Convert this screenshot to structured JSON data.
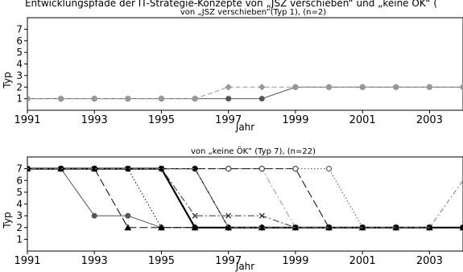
{
  "header_fragment": "Entwicklungspfade der IT-Strategie-Konzepte von „JSZ verschieben“ und „keine ÖK“ (",
  "chart_data": [
    {
      "type": "line",
      "title": "von „JSZ verschieben”(Typ 1), (n=2)",
      "xlabel": "Jahr",
      "ylabel": "Typ",
      "xlim": [
        1991,
        2004
      ],
      "ylim": [
        0,
        8
      ],
      "xticks": [
        1991,
        1993,
        1995,
        1997,
        1999,
        2001,
        2003
      ],
      "yticks": [
        1,
        2,
        3,
        4,
        5,
        6,
        7
      ],
      "series": [
        {
          "color": "#555555",
          "dash": "solid",
          "marker": "circle",
          "x": [
            1991,
            1992,
            1993,
            1994,
            1995,
            1996,
            1997,
            1998,
            1999,
            2000,
            2001,
            2002,
            2003,
            2004
          ],
          "y": [
            1,
            1,
            1,
            1,
            1,
            1,
            1,
            1,
            2,
            2,
            2,
            2,
            2,
            2
          ]
        },
        {
          "color": "#999999",
          "dash": "dashed",
          "marker": "diamond",
          "x": [
            1991,
            1992,
            1993,
            1994,
            1995,
            1996,
            1997,
            1998,
            1999,
            2000,
            2001,
            2002,
            2003,
            2004
          ],
          "y": [
            1,
            1,
            1,
            1,
            1,
            1,
            2,
            2,
            2,
            2,
            2,
            2,
            2,
            2
          ]
        }
      ]
    },
    {
      "type": "line",
      "title": "von „keine ÖK” (Typ 7), (n=22)",
      "xlabel": "Jahr",
      "ylabel": "Typ",
      "xlim": [
        1991,
        2004
      ],
      "ylim": [
        0,
        8
      ],
      "xticks": [
        1991,
        1993,
        1995,
        1997,
        1999,
        2001,
        2003
      ],
      "yticks": [
        1,
        2,
        3,
        4,
        5,
        6,
        7
      ],
      "series": [
        {
          "color": "#555555",
          "dash": "solid",
          "marker": "circle",
          "x": [
            1991,
            1992,
            1993,
            1994,
            1995,
            1996,
            1997,
            1998,
            1999,
            2000,
            2001,
            2002,
            2003,
            2004
          ],
          "y": [
            7,
            7,
            3,
            3,
            2,
            2,
            2,
            2,
            2,
            2,
            2,
            2,
            2,
            2
          ]
        },
        {
          "color": "#000000",
          "dash": "longdash",
          "marker": "triangle",
          "x": [
            1991,
            1992,
            1993,
            1994,
            1995,
            1996,
            1997,
            1998,
            1999,
            2000,
            2001,
            2002,
            2003,
            2004
          ],
          "y": [
            7,
            7,
            7,
            2,
            2,
            2,
            2,
            2,
            2,
            2,
            2,
            2,
            2,
            2
          ]
        },
        {
          "color": "#000000",
          "dash": "dotted",
          "marker": "plus",
          "x": [
            1991,
            1992,
            1993,
            1994,
            1995,
            1996,
            1997,
            1998,
            1999,
            2000,
            2001,
            2002,
            2003,
            2004
          ],
          "y": [
            7,
            7,
            7,
            7,
            2,
            2,
            2,
            2,
            2,
            2,
            2,
            2,
            2,
            2
          ]
        },
        {
          "color": "#000000",
          "dash": "thick",
          "marker": "circle",
          "x": [
            1991,
            1992,
            1993,
            1994,
            1995,
            1996,
            1997,
            1998,
            1999,
            2000,
            2001,
            2002,
            2003,
            2004
          ],
          "y": [
            7,
            7,
            7,
            7,
            7,
            2,
            2,
            2,
            2,
            2,
            2,
            2,
            2,
            2
          ]
        },
        {
          "color": "#333333",
          "dash": "dashdot",
          "marker": "cross",
          "x": [
            1991,
            1992,
            1993,
            1994,
            1995,
            1996,
            1997,
            1998,
            1999,
            2000,
            2001,
            2002,
            2003,
            2004
          ],
          "y": [
            7,
            7,
            7,
            7,
            7,
            3,
            3,
            3,
            2,
            2,
            2,
            2,
            2,
            2
          ]
        },
        {
          "color": "#000000",
          "dash": "longdash",
          "marker": "asterisk",
          "x": [
            1991,
            1992,
            1993,
            1994,
            1995,
            1996,
            1997,
            1998,
            1999,
            2000,
            2001,
            2002,
            2003,
            2004
          ],
          "y": [
            7,
            7,
            7,
            7,
            7,
            7,
            2,
            2,
            2,
            2,
            2,
            2,
            2,
            2
          ]
        },
        {
          "color": "#999999",
          "dash": "dashdot",
          "marker": "diamond",
          "x": [
            1991,
            1992,
            1993,
            1994,
            1995,
            1996,
            1997,
            1998,
            1999,
            2000,
            2001,
            2002,
            2003,
            2004
          ],
          "y": [
            7,
            7,
            7,
            7,
            7,
            7,
            7,
            7,
            2,
            2,
            2,
            2,
            2,
            2
          ]
        },
        {
          "color": "#000000",
          "dash": "longdash",
          "marker": "circle-dot",
          "x": [
            1991,
            1992,
            1993,
            1994,
            1995,
            1996,
            1997,
            1998,
            1999,
            2000,
            2001,
            2002,
            2003,
            2004
          ],
          "y": [
            7,
            7,
            7,
            7,
            7,
            7,
            7,
            7,
            7,
            2,
            2,
            2,
            2,
            2
          ]
        },
        {
          "color": "#555555",
          "dash": "dotted",
          "marker": "open-circle",
          "x": [
            1991,
            1992,
            1993,
            1994,
            1995,
            1996,
            1997,
            1998,
            1999,
            2000,
            2001,
            2002,
            2003,
            2004
          ],
          "y": [
            7,
            7,
            7,
            7,
            7,
            7,
            7,
            7,
            7,
            7,
            2,
            2,
            2,
            2
          ]
        },
        {
          "color": "#000000",
          "dash": "solid",
          "marker": "circle",
          "x": [
            1991,
            1992,
            1993,
            1994,
            1995,
            1996,
            1997,
            1998,
            1999,
            2000,
            2001,
            2002,
            2003,
            2004
          ],
          "y": [
            7,
            7,
            7,
            7,
            7,
            7,
            2,
            2,
            2,
            2,
            2,
            2,
            2,
            2
          ]
        },
        {
          "color": "#777777",
          "dash": "dotdash",
          "marker": "none",
          "x": [
            1991,
            1992,
            1993,
            1994,
            1995,
            1996,
            1997,
            1998,
            1999,
            2000,
            2001,
            2002,
            2003,
            2004
          ],
          "y": [
            7,
            7,
            7,
            7,
            7,
            7,
            2,
            2,
            2,
            2,
            2,
            2,
            2,
            6
          ]
        }
      ]
    }
  ]
}
